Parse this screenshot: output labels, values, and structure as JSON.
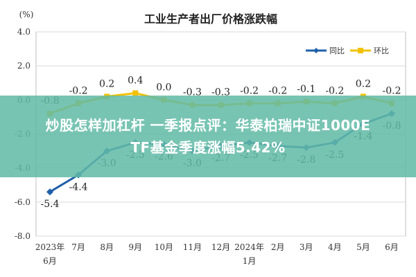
{
  "chart_data": {
    "type": "line",
    "title": "工业生产者出厂价格涨跌幅",
    "ylabel": "(%)",
    "xlabel": "",
    "ylim": [
      -8.0,
      4.0
    ],
    "yticks": [
      "4.0",
      "2.0",
      "0.0",
      "-2.0",
      "-4.0",
      "-6.0",
      "-8.0"
    ],
    "categories": [
      "2023年6月",
      "7月",
      "8月",
      "9月",
      "10月",
      "11月",
      "12月",
      "2024年1月",
      "2月",
      "3月",
      "4月",
      "5月",
      "6月"
    ],
    "grid": true,
    "legend_position": "top-right",
    "series": [
      {
        "name": "同比",
        "color": "#1f5fa8",
        "values": [
          -5.4,
          -4.4,
          -3.0,
          -2.5,
          -2.6,
          -3.0,
          -2.7,
          -2.5,
          -2.7,
          -2.8,
          -2.5,
          -1.4,
          -0.8
        ],
        "labels": [
          "-5.4",
          "-4.4",
          "-3.0",
          "-2.5",
          "-2.6",
          "-3.0",
          "-2.7",
          "-2.5",
          "-2.7",
          "-2.8",
          "-2.5",
          "-1.4",
          "-0.8"
        ]
      },
      {
        "name": "环比",
        "color": "#f2c200",
        "values": [
          -0.8,
          -0.2,
          0.2,
          0.4,
          0.0,
          -0.3,
          -0.3,
          -0.2,
          -0.2,
          -0.1,
          -0.2,
          0.2,
          -0.2
        ],
        "labels": [
          "-0.8",
          "-0.2",
          "0.2",
          "0.4",
          "0.0",
          "-0.3",
          "-0.3",
          "-0.2",
          "-0.2",
          "-0.1",
          "-0.2",
          "0.2",
          "-0.2"
        ]
      }
    ]
  },
  "banner": {
    "line1": "炒股怎样加杠杆 一季报点评：华泰柏瑞中证1000E",
    "line2": "TF基金季度涨幅5.42%"
  }
}
